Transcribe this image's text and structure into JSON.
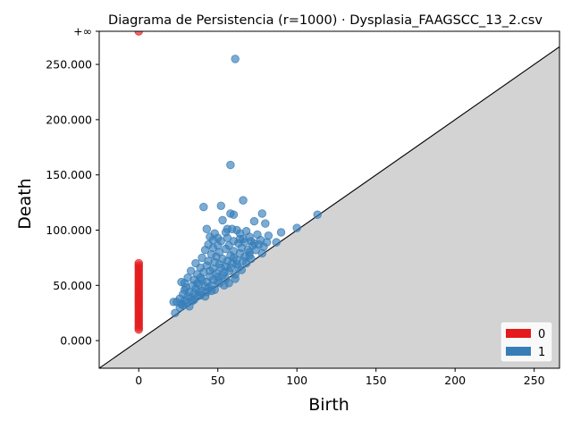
{
  "chart_data": {
    "type": "scatter",
    "title": "Diagrama de Persistencia (r=1000) · Dysplasia_FAAGSCC_13_2.csv",
    "xlabel": "Birth",
    "ylabel": "Death",
    "xlim": [
      -25,
      266
    ],
    "ylim": [
      -25000,
      280000
    ],
    "infinity_value": 280000,
    "infinity_label": "+∞",
    "x_ticks": [
      0,
      50,
      100,
      150,
      200,
      250
    ],
    "x_tick_labels": [
      "0",
      "50",
      "100",
      "150",
      "200",
      "250"
    ],
    "y_ticks": [
      0,
      50000,
      100000,
      150000,
      200000,
      250000
    ],
    "y_tick_labels": [
      "0.000",
      "50.000",
      "100.000",
      "150.000",
      "200.000",
      "250.000"
    ],
    "diagonal": true,
    "legend_position": "bottom-right",
    "series": [
      {
        "name": "0",
        "color": "#e41a1c",
        "points": [
          [
            0,
            280000
          ],
          [
            0,
            70000
          ],
          [
            0,
            68000
          ],
          [
            0,
            66000
          ],
          [
            0,
            64000
          ],
          [
            0,
            62000
          ],
          [
            0,
            60000
          ],
          [
            0,
            58000
          ],
          [
            0,
            56000
          ],
          [
            0,
            54000
          ],
          [
            0,
            52000
          ],
          [
            0,
            50000
          ],
          [
            0,
            48000
          ],
          [
            0,
            46000
          ],
          [
            0,
            44000
          ],
          [
            0,
            42000
          ],
          [
            0,
            40000
          ],
          [
            0,
            38000
          ],
          [
            0,
            36000
          ],
          [
            0,
            34000
          ],
          [
            0,
            32000
          ],
          [
            0,
            30000
          ],
          [
            0,
            28000
          ],
          [
            0,
            26000
          ],
          [
            0,
            24000
          ],
          [
            0,
            22000
          ],
          [
            0,
            20000
          ],
          [
            0,
            18000
          ],
          [
            0,
            16000
          ],
          [
            0,
            14000
          ],
          [
            0,
            12000
          ],
          [
            0,
            10000
          ]
        ]
      },
      {
        "name": "1",
        "color": "#377eb8",
        "points": [
          [
            61,
            255000
          ],
          [
            58,
            159000
          ],
          [
            66,
            127000
          ],
          [
            41,
            121000
          ],
          [
            52,
            122000
          ],
          [
            58,
            115000
          ],
          [
            60,
            114000
          ],
          [
            78,
            115000
          ],
          [
            113,
            114000
          ],
          [
            53,
            109000
          ],
          [
            80,
            106000
          ],
          [
            73,
            108000
          ],
          [
            100,
            102000
          ],
          [
            90,
            98000
          ],
          [
            43,
            101000
          ],
          [
            48,
            97000
          ],
          [
            55,
            98000
          ],
          [
            62,
            100000
          ],
          [
            68,
            99000
          ],
          [
            82,
            95000
          ],
          [
            87,
            89000
          ],
          [
            75,
            96000
          ],
          [
            56,
            101000
          ],
          [
            59,
            101000
          ],
          [
            64,
            97000
          ],
          [
            45,
            94000
          ],
          [
            50,
            93000
          ],
          [
            70,
            94000
          ],
          [
            77,
            91000
          ],
          [
            44,
            87000
          ],
          [
            47,
            84000
          ],
          [
            52,
            90000
          ],
          [
            57,
            86000
          ],
          [
            63,
            88000
          ],
          [
            66,
            92000
          ],
          [
            72,
            86000
          ],
          [
            79,
            85000
          ],
          [
            42,
            82000
          ],
          [
            46,
            78000
          ],
          [
            51,
            80000
          ],
          [
            55,
            83000
          ],
          [
            60,
            81000
          ],
          [
            65,
            84000
          ],
          [
            70,
            80000
          ],
          [
            74,
            82000
          ],
          [
            78,
            79000
          ],
          [
            40,
            75000
          ],
          [
            44,
            72000
          ],
          [
            49,
            76000
          ],
          [
            53,
            74000
          ],
          [
            58,
            77000
          ],
          [
            62,
            73000
          ],
          [
            67,
            76000
          ],
          [
            71,
            74000
          ],
          [
            36,
            70000
          ],
          [
            39,
            66000
          ],
          [
            43,
            68000
          ],
          [
            47,
            65000
          ],
          [
            51,
            69000
          ],
          [
            55,
            67000
          ],
          [
            59,
            70000
          ],
          [
            63,
            66000
          ],
          [
            68,
            70000
          ],
          [
            33,
            63000
          ],
          [
            37,
            60000
          ],
          [
            41,
            62000
          ],
          [
            45,
            58000
          ],
          [
            49,
            61000
          ],
          [
            53,
            59000
          ],
          [
            57,
            63000
          ],
          [
            61,
            60000
          ],
          [
            65,
            64000
          ],
          [
            31,
            57000
          ],
          [
            35,
            55000
          ],
          [
            39,
            57000
          ],
          [
            43,
            53000
          ],
          [
            47,
            55000
          ],
          [
            51,
            52000
          ],
          [
            55,
            56000
          ],
          [
            29,
            52000
          ],
          [
            27,
            53000
          ],
          [
            30,
            48000
          ],
          [
            34,
            50000
          ],
          [
            38,
            51000
          ],
          [
            42,
            49000
          ],
          [
            46,
            50000
          ],
          [
            50,
            54000
          ],
          [
            29,
            46000
          ],
          [
            32,
            44000
          ],
          [
            36,
            47000
          ],
          [
            40,
            45000
          ],
          [
            44,
            48000
          ],
          [
            48,
            46000
          ],
          [
            28,
            42000
          ],
          [
            31,
            40000
          ],
          [
            35,
            43000
          ],
          [
            39,
            41000
          ],
          [
            43,
            44000
          ],
          [
            26,
            38000
          ],
          [
            29,
            36000
          ],
          [
            33,
            39000
          ],
          [
            37,
            40000
          ],
          [
            24,
            35000
          ],
          [
            27,
            33000
          ],
          [
            30,
            34000
          ],
          [
            34,
            36000
          ],
          [
            22,
            35000
          ],
          [
            23,
            25000
          ],
          [
            26,
            30000
          ],
          [
            28,
            32000
          ],
          [
            32,
            31000
          ],
          [
            35,
            37000
          ],
          [
            38,
            44000
          ],
          [
            42,
            40000
          ],
          [
            46,
            45000
          ],
          [
            54,
            62000
          ],
          [
            58,
            66000
          ],
          [
            62,
            69000
          ],
          [
            66,
            72000
          ],
          [
            70,
            77000
          ],
          [
            56,
            72000
          ],
          [
            60,
            75000
          ],
          [
            64,
            79000
          ],
          [
            69,
            82000
          ],
          [
            73,
            88000
          ],
          [
            48,
            71000
          ],
          [
            52,
            66000
          ],
          [
            57,
            52000
          ],
          [
            61,
            56000
          ],
          [
            45,
            63000
          ],
          [
            50,
            58000
          ],
          [
            54,
            50000
          ],
          [
            40,
            55000
          ],
          [
            37,
            52000
          ],
          [
            60,
            90000
          ],
          [
            64,
            92000
          ],
          [
            67,
            89000
          ],
          [
            71,
            90000
          ],
          [
            76,
            87000
          ],
          [
            81,
            89000
          ],
          [
            56,
            93000
          ],
          [
            50,
            86000
          ],
          [
            47,
            91000
          ]
        ]
      }
    ]
  }
}
